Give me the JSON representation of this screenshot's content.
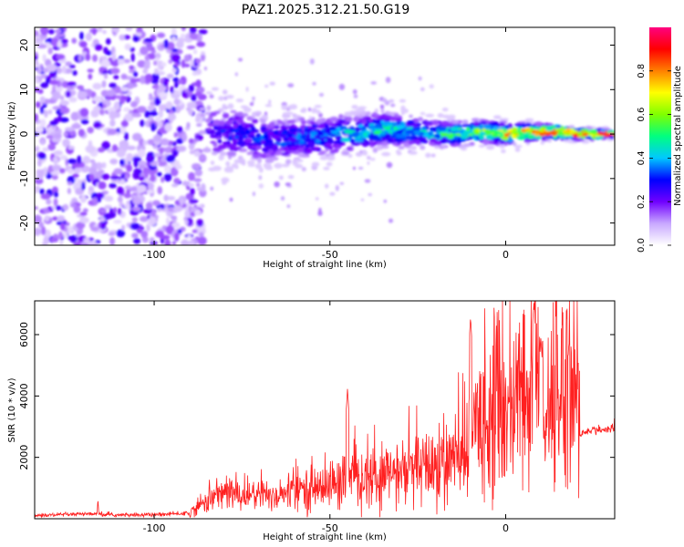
{
  "chart_data": [
    {
      "type": "heatmap",
      "title": "PAZ1.2025.312.21.50.G19",
      "xlabel": "Height of straight line (km)",
      "ylabel": "Frequency (Hz)",
      "xlim": [
        -134,
        31
      ],
      "ylim": [
        -25,
        24
      ],
      "xticks": [
        -100,
        -50,
        0
      ],
      "xtick_labels": [
        "-100",
        "-50",
        "0"
      ],
      "yticks": [
        -20,
        -10,
        0,
        10,
        20
      ],
      "ytick_labels": [
        "-20",
        "-10",
        "0",
        "10",
        "20"
      ],
      "colorbar": {
        "label": "Normalized spectral amplitude",
        "range": [
          0,
          1
        ],
        "ticks": [
          0.0,
          0.2,
          0.4,
          0.6,
          0.8
        ],
        "tick_labels": [
          "0.0",
          "0.2",
          "0.4",
          "0.6",
          "0.8"
        ],
        "colors": [
          "#ffffff",
          "#c8a8ff",
          "#7000ff",
          "#0000ff",
          "#00c8ff",
          "#00ff80",
          "#80ff00",
          "#ffff00",
          "#ff8000",
          "#ff0000",
          "#ff0080"
        ]
      },
      "ridge": {
        "x": [
          -85,
          -75,
          -65,
          -55,
          -45,
          -35,
          -25,
          -15,
          -5,
          0,
          5,
          10,
          15,
          20,
          25,
          31
        ],
        "frequency_hz": [
          0.5,
          0.0,
          -1.5,
          -0.5,
          0.0,
          1.0,
          0.5,
          0.0,
          0.5,
          0.0,
          0.3,
          0.5,
          0.5,
          0.0,
          0.0,
          0.0
        ],
        "amplitude": [
          0.25,
          0.3,
          0.3,
          0.35,
          0.4,
          0.45,
          0.4,
          0.5,
          0.6,
          0.7,
          0.75,
          0.8,
          0.85,
          0.9,
          0.95,
          1.0
        ]
      },
      "noise_region_x": [
        -134,
        -90
      ]
    },
    {
      "type": "line",
      "xlabel": "Height of straight line (km)",
      "ylabel": "SNR (10 * v/v)",
      "xlim": [
        -134,
        31
      ],
      "ylim": [
        0,
        7100
      ],
      "xticks": [
        -100,
        -50,
        0
      ],
      "xtick_labels": [
        "-100",
        "-50",
        "0"
      ],
      "yticks": [
        2000,
        4000,
        6000
      ],
      "ytick_labels": [
        "2000",
        "4000",
        "6000"
      ],
      "color": "#ff2020",
      "series": [
        {
          "name": "SNR",
          "x": [
            -134,
            -120,
            -110,
            -100,
            -90,
            -85,
            -80,
            -75,
            -70,
            -65,
            -60,
            -55,
            -50,
            -45,
            -40,
            -35,
            -30,
            -25,
            -20,
            -15,
            -12,
            -10,
            -8,
            -5,
            0,
            5,
            8,
            10,
            12,
            15,
            18,
            20,
            21,
            22,
            25,
            31
          ],
          "y": [
            100,
            150,
            120,
            130,
            180,
            600,
            900,
            750,
            800,
            750,
            900,
            1000,
            1100,
            1200,
            1300,
            1400,
            1500,
            1600,
            1700,
            1900,
            2000,
            2300,
            3400,
            3500,
            3600,
            3800,
            4400,
            4000,
            3700,
            4300,
            4500,
            4600,
            2700,
            2800,
            2900,
            2900
          ]
        }
      ],
      "spikes": [
        {
          "x": -116,
          "y": 650
        },
        {
          "x": -45,
          "y": 4250
        },
        {
          "x": -10,
          "y": 6550
        },
        {
          "x": 8,
          "y": 7050
        },
        {
          "x": 10,
          "y": 5900
        },
        {
          "x": 18,
          "y": 5750
        }
      ]
    }
  ]
}
